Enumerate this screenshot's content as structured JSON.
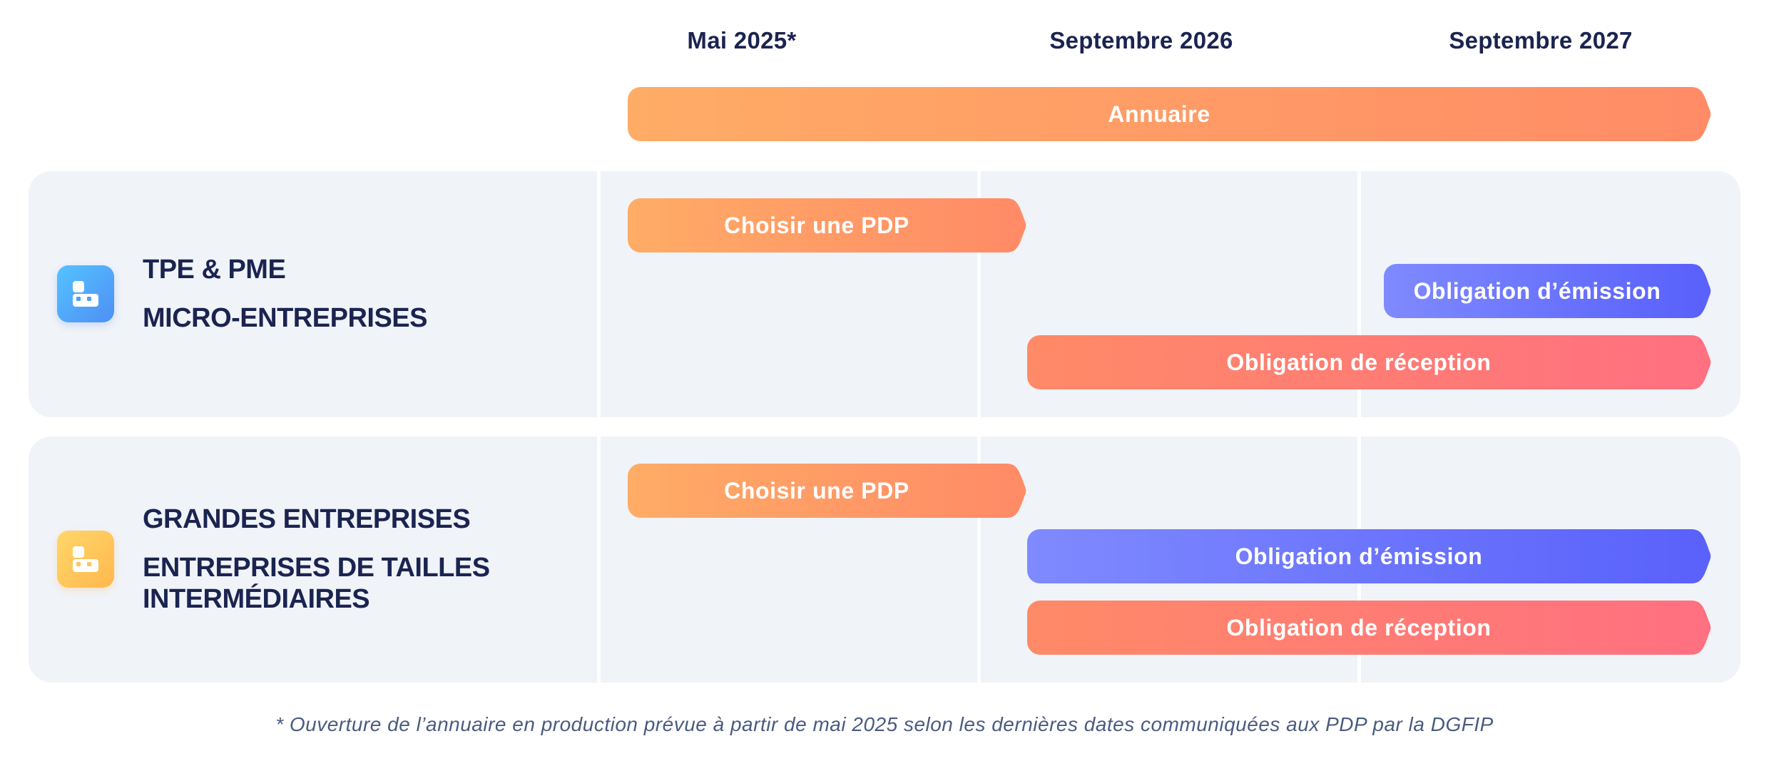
{
  "timeline": {
    "col1": "Mai 2025*",
    "col2": "Septembre 2026",
    "col3": "Septembre 2027",
    "annuaire": "Annuaire"
  },
  "groups": [
    {
      "icon": "building-icon",
      "icon_color": "#4f9ff5",
      "line1": "TPE & PME",
      "line2": "MICRO-ENTREPRISES",
      "bars": {
        "choose": "Choisir une PDP",
        "emission": "Obligation d’émission",
        "reception": "Obligation de réception"
      }
    },
    {
      "icon": "building-icon",
      "icon_color": "#ffc45a",
      "line1": "GRANDES ENTREPRISES",
      "line2": "ENTREPRISES DE TAILLES INTERMÉDIAIRES",
      "bars": {
        "choose": "Choisir une PDP",
        "emission": "Obligation d’émission",
        "reception": "Obligation de réception"
      }
    }
  ],
  "colors": {
    "orange": "#ffac66",
    "coral": "#ff7080",
    "blue": "#5a62fb",
    "navy": "#1b2450",
    "panel": "#f0f3f8"
  },
  "footnote": "* Ouverture de l’annuaire en production prévue à partir de mai 2025 selon les dernières dates communiquées aux PDP par la DGFIP"
}
